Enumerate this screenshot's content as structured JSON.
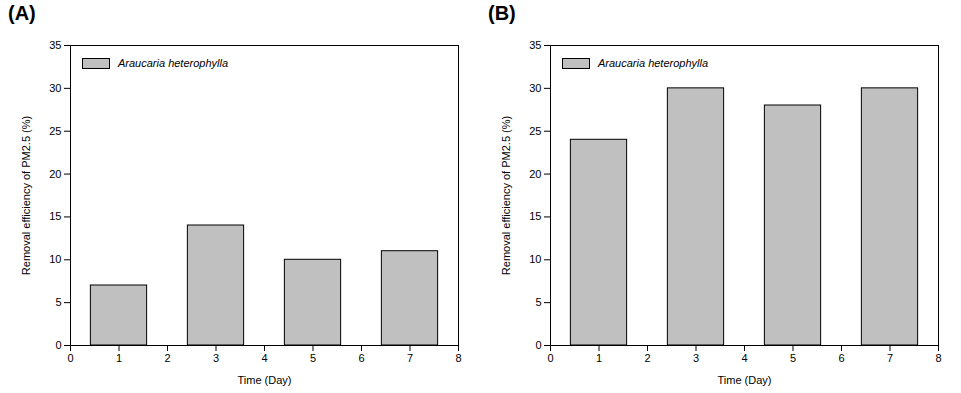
{
  "chart_data": [
    {
      "type": "bar",
      "title": "(A)",
      "x": [
        1,
        3,
        5,
        7
      ],
      "series": [
        {
          "name": "Araucaria heterophylla",
          "color": "#c0c0c0",
          "values": [
            7,
            14,
            10,
            11
          ]
        }
      ],
      "x_label": "Time (Day)",
      "y_label": "Removal efficiency of PM2.5 (%)",
      "xlim": [
        0,
        8
      ],
      "xticks": [
        0,
        1,
        2,
        3,
        4,
        5,
        6,
        7,
        8
      ],
      "ylim": [
        0,
        35
      ],
      "yticks": [
        0,
        5,
        10,
        15,
        20,
        25,
        30,
        35
      ],
      "legend": "top-left"
    },
    {
      "type": "bar",
      "title": "(B)",
      "x": [
        1,
        3,
        5,
        7
      ],
      "series": [
        {
          "name": "Araucaria heterophylla",
          "color": "#c0c0c0",
          "values": [
            24,
            30,
            28,
            30
          ]
        }
      ],
      "x_label": "Time (Day)",
      "y_label": "Removal efficiency of PM2.5 (%)",
      "xlim": [
        0,
        8
      ],
      "xticks": [
        0,
        1,
        2,
        3,
        4,
        5,
        6,
        7,
        8
      ],
      "ylim": [
        0,
        35
      ],
      "yticks": [
        0,
        5,
        10,
        15,
        20,
        25,
        30,
        35
      ],
      "legend": "top-left"
    }
  ]
}
